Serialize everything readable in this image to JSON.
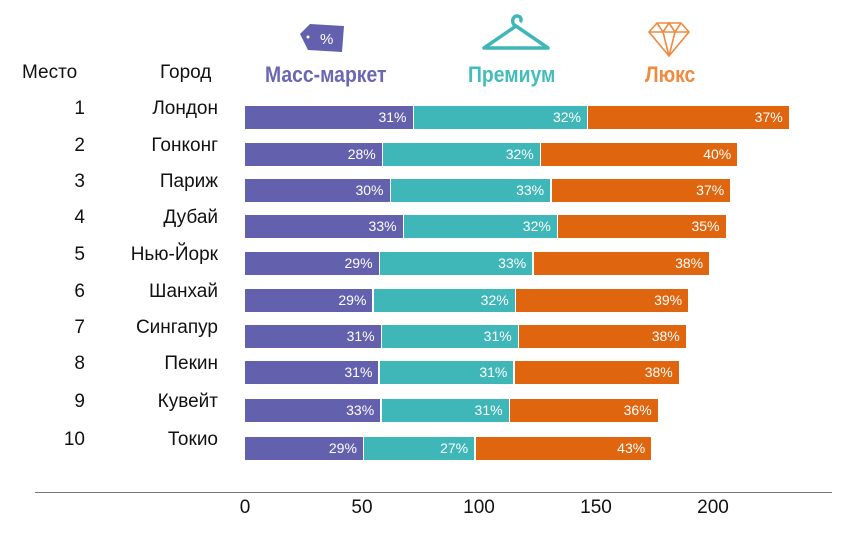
{
  "chart_data": {
    "type": "bar",
    "orientation": "horizontal-stacked",
    "headers": {
      "rank": "Место",
      "city": "Город"
    },
    "series_names": [
      "Масс-маркет",
      "Премиум",
      "Люкс"
    ],
    "series_colors": [
      "#6361ad",
      "#3fb6b8",
      "#e0650f"
    ],
    "header_colors": [
      "#6a67b3",
      "#45bcbc",
      "#f08a3e"
    ],
    "ranks": [
      "1",
      "2",
      "3",
      "4",
      "5",
      "6",
      "7",
      "8",
      "9",
      "10"
    ],
    "categories": [
      "Лондон",
      "Гонконг",
      "Париж",
      "Дубай",
      "Нью-Йорк",
      "Шанхай",
      "Сингапур",
      "Пекин",
      "Кувейт",
      "Токио"
    ],
    "totals": [
      233,
      211,
      208,
      206,
      199,
      190,
      189,
      186,
      177,
      176
    ],
    "percent_labels": [
      [
        "31%",
        "32%",
        "37%"
      ],
      [
        "28%",
        "32%",
        "40%"
      ],
      [
        "30%",
        "33%",
        "37%"
      ],
      [
        "33%",
        "32%",
        "35%"
      ],
      [
        "29%",
        "33%",
        "38%"
      ],
      [
        "29%",
        "32%",
        "39%"
      ],
      [
        "31%",
        "31%",
        "38%"
      ],
      [
        "31%",
        "31%",
        "38%"
      ],
      [
        "33%",
        "31%",
        "36%"
      ],
      [
        "29%",
        "27%",
        "43%"
      ]
    ],
    "percents": [
      [
        31,
        32,
        37
      ],
      [
        28,
        32,
        40
      ],
      [
        30,
        33,
        37
      ],
      [
        33,
        32,
        35
      ],
      [
        29,
        33,
        38
      ],
      [
        29,
        32,
        39
      ],
      [
        31,
        31,
        38
      ],
      [
        31,
        31,
        38
      ],
      [
        33,
        31,
        36
      ],
      [
        29,
        27,
        43
      ]
    ],
    "xticks": [
      "0",
      "50",
      "100",
      "150",
      "200"
    ],
    "xtick_values": [
      0,
      50,
      100,
      150,
      200
    ],
    "xlim": [
      0,
      250
    ],
    "icons": [
      "price-tag-icon",
      "hanger-icon",
      "diamond-icon"
    ],
    "tag_symbol": "%"
  }
}
